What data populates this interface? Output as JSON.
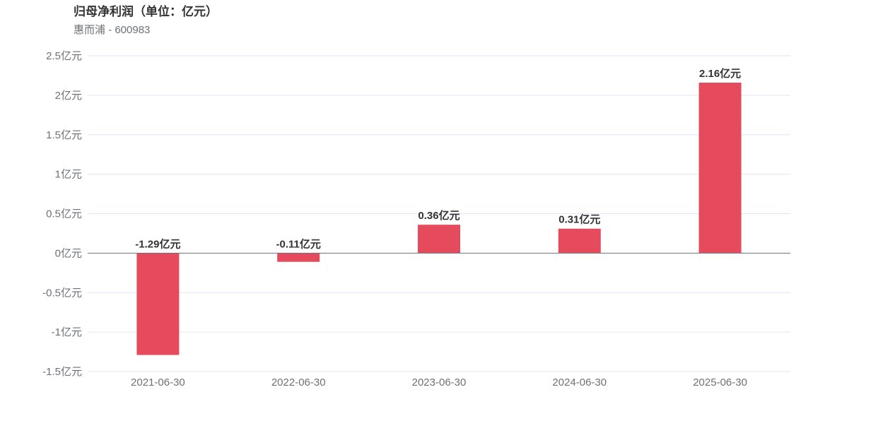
{
  "header": {
    "title": "归母净利润（单位：亿元）",
    "subtitle": "惠而浦 - 600983"
  },
  "chart_data": {
    "type": "bar",
    "title": "归母净利润（单位：亿元）",
    "subtitle": "惠而浦 - 600983",
    "categories": [
      "2021-06-30",
      "2022-06-30",
      "2023-06-30",
      "2024-06-30",
      "2025-06-30"
    ],
    "values": [
      -1.29,
      -0.11,
      0.36,
      0.31,
      2.16
    ],
    "value_labels": [
      "-1.29亿元",
      "-0.11亿元",
      "0.36亿元",
      "0.31亿元",
      "2.16亿元"
    ],
    "unit_suffix": "亿元",
    "y_ticks": [
      2.5,
      2,
      1.5,
      1,
      0.5,
      0,
      -0.5,
      -1,
      -1.5
    ],
    "y_tick_labels": [
      "2.5亿元",
      "2亿元",
      "1.5亿元",
      "1亿元",
      "0.5亿元",
      "0亿元",
      "-0.5亿元",
      "-1亿元",
      "-1.5亿元"
    ],
    "ylim": [
      -1.5,
      2.5
    ],
    "xlabel": "",
    "ylabel": "",
    "grid": true,
    "legend": "none",
    "bar_color": "#e64b5d",
    "grid_color": "#e0e6f1",
    "axis_color": "#6e7079"
  }
}
